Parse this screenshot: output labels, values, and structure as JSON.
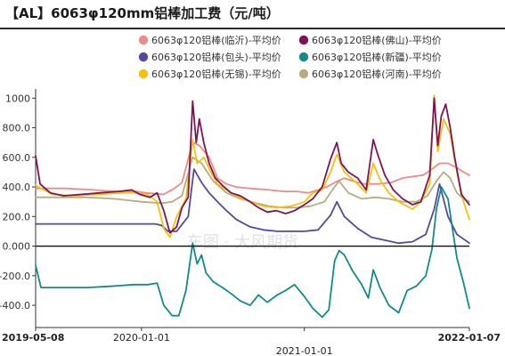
{
  "header": {
    "title": "【AL】6063φ120mm铝棒加工费（元/吨）"
  },
  "watermark": "车图 · 大风期货",
  "chart_data": {
    "type": "line",
    "title": "【AL】6063φ120mm铝棒加工费（元/吨）",
    "xlabel": "",
    "ylabel": "",
    "ylim": [
      -550,
      1050
    ],
    "yticks": [
      -400.0,
      -200.0,
      0.0,
      200.0,
      400.0,
      600.0,
      800.0,
      1000
    ],
    "ytick_labels": [
      "-400.0",
      "-200.0",
      "0.000",
      "200.0",
      "400.0",
      "600.0",
      "800.0",
      "1000"
    ],
    "xlim": [
      "2019-05-08",
      "2022-01-07"
    ],
    "date_labels": [
      {
        "text": "2019-05-08",
        "date": "2019-05-08",
        "bold": true,
        "row": 1
      },
      {
        "text": "2020-01-01",
        "date": "2020-01-01",
        "bold": false,
        "row": 1
      },
      {
        "text": "2021-01-01",
        "date": "2021-01-01",
        "bold": false,
        "row": 2
      },
      {
        "text": "2022-01-07",
        "date": "2022-01-07",
        "bold": true,
        "row": 1
      }
    ],
    "grid": false,
    "legend_position": "top",
    "series": [
      {
        "name": "6063φ120铝棒(临沂)-平均价",
        "color": "#f08a86",
        "points": [
          [
            "2019-05-08",
            390
          ],
          [
            "2019-07-15",
            390
          ],
          [
            "2019-09-15",
            380
          ],
          [
            "2019-11-01",
            370
          ],
          [
            "2019-12-20",
            370
          ],
          [
            "2020-01-10",
            360
          ],
          [
            "2020-02-20",
            350
          ],
          [
            "2020-03-15",
            390
          ],
          [
            "2020-04-01",
            430
          ],
          [
            "2020-04-25",
            700
          ],
          [
            "2020-05-10",
            680
          ],
          [
            "2020-06-01",
            600
          ],
          [
            "2020-06-20",
            460
          ],
          [
            "2020-07-10",
            420
          ],
          [
            "2020-08-01",
            400
          ],
          [
            "2020-09-01",
            390
          ],
          [
            "2020-10-15",
            380
          ],
          [
            "2020-11-15",
            370
          ],
          [
            "2020-12-15",
            370
          ],
          [
            "2021-01-10",
            360
          ],
          [
            "2021-02-01",
            380
          ],
          [
            "2021-02-20",
            400
          ],
          [
            "2021-03-10",
            430
          ],
          [
            "2021-04-01",
            460
          ],
          [
            "2021-04-20",
            440
          ],
          [
            "2021-05-15",
            420
          ],
          [
            "2021-06-15",
            420
          ],
          [
            "2021-07-15",
            430
          ],
          [
            "2021-08-10",
            460
          ],
          [
            "2021-09-01",
            470
          ],
          [
            "2021-09-25",
            480
          ],
          [
            "2021-10-15",
            520
          ],
          [
            "2021-11-01",
            560
          ],
          [
            "2021-11-20",
            560
          ],
          [
            "2021-12-10",
            530
          ],
          [
            "2021-12-25",
            500
          ],
          [
            "2022-01-07",
            480
          ]
        ]
      },
      {
        "name": "6063φ120铝棒(佛山)-平均价",
        "color": "#7e1458",
        "points": [
          [
            "2019-05-08",
            610
          ],
          [
            "2019-05-18",
            420
          ],
          [
            "2019-06-10",
            360
          ],
          [
            "2019-07-10",
            340
          ],
          [
            "2019-08-20",
            350
          ],
          [
            "2019-10-01",
            360
          ],
          [
            "2019-11-10",
            370
          ],
          [
            "2019-12-10",
            380
          ],
          [
            "2019-12-28",
            350
          ],
          [
            "2020-01-20",
            330
          ],
          [
            "2020-02-05",
            360
          ],
          [
            "2020-02-20",
            240
          ],
          [
            "2020-03-05",
            90
          ],
          [
            "2020-03-20",
            130
          ],
          [
            "2020-04-01",
            260
          ],
          [
            "2020-04-15",
            330
          ],
          [
            "2020-04-25",
            980
          ],
          [
            "2020-05-03",
            700
          ],
          [
            "2020-05-10",
            860
          ],
          [
            "2020-05-20",
            700
          ],
          [
            "2020-06-01",
            560
          ],
          [
            "2020-06-15",
            460
          ],
          [
            "2020-07-01",
            410
          ],
          [
            "2020-07-20",
            360
          ],
          [
            "2020-08-10",
            340
          ],
          [
            "2020-09-01",
            300
          ],
          [
            "2020-09-20",
            260
          ],
          [
            "2020-10-10",
            230
          ],
          [
            "2020-10-30",
            240
          ],
          [
            "2020-11-20",
            220
          ],
          [
            "2020-12-10",
            240
          ],
          [
            "2021-01-01",
            280
          ],
          [
            "2021-01-20",
            320
          ],
          [
            "2021-02-10",
            400
          ],
          [
            "2021-03-01",
            590
          ],
          [
            "2021-03-15",
            700
          ],
          [
            "2021-03-25",
            560
          ],
          [
            "2021-04-10",
            500
          ],
          [
            "2021-05-01",
            460
          ],
          [
            "2021-05-20",
            380
          ],
          [
            "2021-06-05",
            720
          ],
          [
            "2021-06-15",
            620
          ],
          [
            "2021-07-01",
            480
          ],
          [
            "2021-07-20",
            380
          ],
          [
            "2021-08-10",
            320
          ],
          [
            "2021-09-01",
            280
          ],
          [
            "2021-09-20",
            300
          ],
          [
            "2021-10-10",
            480
          ],
          [
            "2021-10-20",
            1000
          ],
          [
            "2021-10-28",
            680
          ],
          [
            "2021-11-05",
            880
          ],
          [
            "2021-11-15",
            960
          ],
          [
            "2021-11-25",
            800
          ],
          [
            "2021-12-05",
            600
          ],
          [
            "2021-12-20",
            350
          ],
          [
            "2022-01-07",
            280
          ]
        ]
      },
      {
        "name": "6063φ120铝棒(包头)-平均价",
        "color": "#57489a",
        "points": [
          [
            "2019-05-08",
            150
          ],
          [
            "2019-08-01",
            150
          ],
          [
            "2019-11-01",
            150
          ],
          [
            "2020-01-05",
            150
          ],
          [
            "2020-02-01",
            150
          ],
          [
            "2020-02-15",
            140
          ],
          [
            "2020-03-01",
            100
          ],
          [
            "2020-03-20",
            100
          ],
          [
            "2020-04-15",
            200
          ],
          [
            "2020-04-28",
            520
          ],
          [
            "2020-05-15",
            430
          ],
          [
            "2020-06-01",
            360
          ],
          [
            "2020-06-20",
            300
          ],
          [
            "2020-07-10",
            240
          ],
          [
            "2020-08-01",
            180
          ],
          [
            "2020-09-01",
            130
          ],
          [
            "2020-10-01",
            110
          ],
          [
            "2020-11-01",
            100
          ],
          [
            "2020-12-01",
            100
          ],
          [
            "2021-01-01",
            100
          ],
          [
            "2021-02-01",
            110
          ],
          [
            "2021-03-01",
            210
          ],
          [
            "2021-03-15",
            300
          ],
          [
            "2021-04-01",
            200
          ],
          [
            "2021-05-01",
            120
          ],
          [
            "2021-06-01",
            60
          ],
          [
            "2021-07-01",
            40
          ],
          [
            "2021-08-01",
            20
          ],
          [
            "2021-09-01",
            30
          ],
          [
            "2021-10-01",
            80
          ],
          [
            "2021-10-20",
            250
          ],
          [
            "2021-11-01",
            420
          ],
          [
            "2021-11-20",
            200
          ],
          [
            "2021-12-10",
            80
          ],
          [
            "2022-01-07",
            20
          ]
        ]
      },
      {
        "name": "6063φ120铝棒(新疆)-平均价",
        "color": "#138a8a",
        "points": [
          [
            "2019-05-08",
            -130
          ],
          [
            "2019-05-20",
            -280
          ],
          [
            "2019-07-01",
            -280
          ],
          [
            "2019-09-01",
            -280
          ],
          [
            "2019-11-01",
            -270
          ],
          [
            "2019-12-15",
            -260
          ],
          [
            "2020-01-15",
            -260
          ],
          [
            "2020-02-05",
            -250
          ],
          [
            "2020-02-20",
            -400
          ],
          [
            "2020-03-10",
            -470
          ],
          [
            "2020-03-25",
            -470
          ],
          [
            "2020-04-10",
            -300
          ],
          [
            "2020-04-25",
            20
          ],
          [
            "2020-05-05",
            -120
          ],
          [
            "2020-05-15",
            -60
          ],
          [
            "2020-05-25",
            -180
          ],
          [
            "2020-06-10",
            -240
          ],
          [
            "2020-07-01",
            -280
          ],
          [
            "2020-07-20",
            -320
          ],
          [
            "2020-08-10",
            -370
          ],
          [
            "2020-09-01",
            -400
          ],
          [
            "2020-09-20",
            -330
          ],
          [
            "2020-10-10",
            -380
          ],
          [
            "2020-11-01",
            -330
          ],
          [
            "2020-11-20",
            -300
          ],
          [
            "2020-12-10",
            -260
          ],
          [
            "2021-01-01",
            -340
          ],
          [
            "2021-01-20",
            -420
          ],
          [
            "2021-02-10",
            -480
          ],
          [
            "2021-02-25",
            -430
          ],
          [
            "2021-03-10",
            -100
          ],
          [
            "2021-03-20",
            -30
          ],
          [
            "2021-04-01",
            -60
          ],
          [
            "2021-04-20",
            -170
          ],
          [
            "2021-05-10",
            -260
          ],
          [
            "2021-05-25",
            -350
          ],
          [
            "2021-06-05",
            -160
          ],
          [
            "2021-06-20",
            -280
          ],
          [
            "2021-07-10",
            -400
          ],
          [
            "2021-08-01",
            -450
          ],
          [
            "2021-08-20",
            -300
          ],
          [
            "2021-09-10",
            -270
          ],
          [
            "2021-10-01",
            -200
          ],
          [
            "2021-10-15",
            -20
          ],
          [
            "2021-10-25",
            250
          ],
          [
            "2021-11-05",
            400
          ],
          [
            "2021-11-20",
            320
          ],
          [
            "2021-12-10",
            -80
          ],
          [
            "2021-12-25",
            -250
          ],
          [
            "2022-01-07",
            -420
          ]
        ]
      },
      {
        "name": "6063φ120铝棒(无锡)-平均价",
        "color": "#f4c20d",
        "points": [
          [
            "2019-05-08",
            410
          ],
          [
            "2019-06-15",
            350
          ],
          [
            "2019-08-01",
            340
          ],
          [
            "2019-10-01",
            350
          ],
          [
            "2019-11-20",
            360
          ],
          [
            "2019-12-20",
            360
          ],
          [
            "2020-01-15",
            350
          ],
          [
            "2020-02-05",
            300
          ],
          [
            "2020-02-20",
            120
          ],
          [
            "2020-03-05",
            60
          ],
          [
            "2020-03-20",
            200
          ],
          [
            "2020-04-10",
            320
          ],
          [
            "2020-04-25",
            720
          ],
          [
            "2020-05-05",
            560
          ],
          [
            "2020-05-20",
            600
          ],
          [
            "2020-06-05",
            500
          ],
          [
            "2020-06-20",
            420
          ],
          [
            "2020-07-10",
            380
          ],
          [
            "2020-08-01",
            340
          ],
          [
            "2020-09-01",
            300
          ],
          [
            "2020-10-01",
            270
          ],
          [
            "2020-11-01",
            260
          ],
          [
            "2020-12-01",
            270
          ],
          [
            "2021-01-01",
            300
          ],
          [
            "2021-01-20",
            360
          ],
          [
            "2021-02-10",
            380
          ],
          [
            "2021-03-01",
            500
          ],
          [
            "2021-03-15",
            620
          ],
          [
            "2021-04-01",
            500
          ],
          [
            "2021-05-01",
            420
          ],
          [
            "2021-05-20",
            360
          ],
          [
            "2021-06-05",
            560
          ],
          [
            "2021-06-20",
            450
          ],
          [
            "2021-07-10",
            360
          ],
          [
            "2021-08-01",
            300
          ],
          [
            "2021-09-01",
            250
          ],
          [
            "2021-09-20",
            300
          ],
          [
            "2021-10-10",
            420
          ],
          [
            "2021-10-20",
            1020
          ],
          [
            "2021-10-28",
            640
          ],
          [
            "2021-11-10",
            860
          ],
          [
            "2021-11-25",
            760
          ],
          [
            "2021-12-10",
            500
          ],
          [
            "2021-12-25",
            300
          ],
          [
            "2022-01-07",
            180
          ]
        ]
      },
      {
        "name": "6063φ120铝棒(河南)-平均价",
        "color": "#b9ab80",
        "points": [
          [
            "2019-05-08",
            330
          ],
          [
            "2019-07-01",
            330
          ],
          [
            "2019-09-01",
            330
          ],
          [
            "2019-11-01",
            320
          ],
          [
            "2020-01-01",
            300
          ],
          [
            "2020-02-15",
            290
          ],
          [
            "2020-03-10",
            300
          ],
          [
            "2020-04-01",
            340
          ],
          [
            "2020-04-25",
            600
          ],
          [
            "2020-05-15",
            560
          ],
          [
            "2020-06-10",
            440
          ],
          [
            "2020-07-10",
            360
          ],
          [
            "2020-08-10",
            320
          ],
          [
            "2020-09-15",
            290
          ],
          [
            "2020-10-15",
            270
          ],
          [
            "2020-11-15",
            260
          ],
          [
            "2020-12-15",
            260
          ],
          [
            "2021-01-15",
            270
          ],
          [
            "2021-02-15",
            300
          ],
          [
            "2021-03-05",
            380
          ],
          [
            "2021-03-20",
            440
          ],
          [
            "2021-04-10",
            360
          ],
          [
            "2021-05-10",
            320
          ],
          [
            "2021-06-10",
            330
          ],
          [
            "2021-07-10",
            320
          ],
          [
            "2021-08-10",
            300
          ],
          [
            "2021-09-10",
            300
          ],
          [
            "2021-10-05",
            340
          ],
          [
            "2021-10-25",
            440
          ],
          [
            "2021-11-10",
            500
          ],
          [
            "2021-11-25",
            460
          ],
          [
            "2021-12-10",
            360
          ],
          [
            "2021-12-25",
            320
          ],
          [
            "2022-01-07",
            300
          ]
        ]
      }
    ]
  }
}
